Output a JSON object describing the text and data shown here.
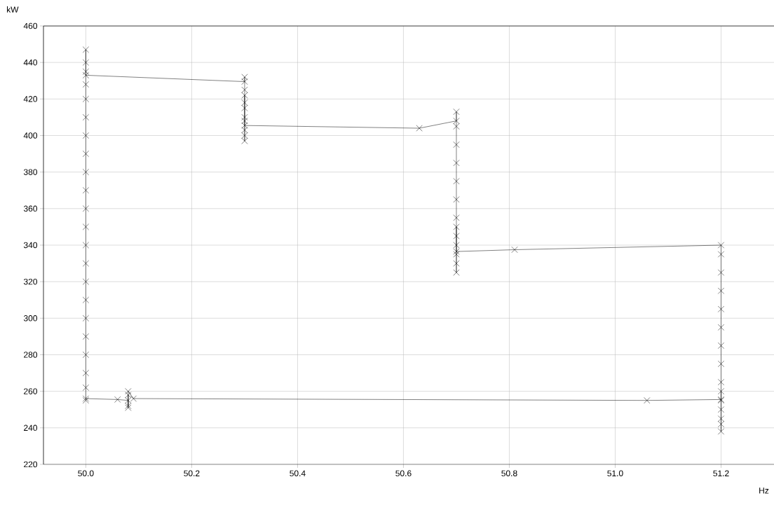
{
  "chart_data": {
    "type": "line",
    "xlabel": "Hz",
    "ylabel": "kW",
    "color": "#000000",
    "marker": "cross",
    "line_style": "solid",
    "grid": true,
    "x": [
      50.0,
      50.0,
      50.0,
      50.0,
      50.0,
      50.0,
      50.0,
      50.0,
      50.0,
      50.0,
      50.0,
      50.0,
      50.0,
      50.0,
      50.0,
      50.0,
      50.0,
      50.0,
      50.0,
      50.0,
      50.0,
      50.0,
      50.0,
      50.3,
      50.3,
      50.3,
      50.3,
      50.3,
      50.3,
      50.3,
      50.3,
      50.3,
      50.3,
      50.3,
      50.3,
      50.63,
      50.7,
      50.7,
      50.7,
      50.7,
      50.7,
      50.7,
      50.7,
      50.7,
      50.7,
      50.7,
      50.7,
      50.7,
      50.7,
      50.7,
      50.7,
      50.81,
      51.2,
      51.2,
      51.2,
      51.2,
      51.2,
      51.2,
      51.2,
      51.2,
      51.2,
      51.2,
      51.2,
      51.2,
      51.2,
      51.2,
      51.2,
      51.2,
      51.06,
      50.09,
      50.08,
      50.08,
      50.08,
      50.08,
      50.08,
      50.06,
      50.0
    ],
    "values": [
      255,
      262,
      270,
      280,
      290,
      300,
      310,
      320,
      330,
      340,
      350,
      360,
      370,
      380,
      390,
      400,
      410,
      420,
      428,
      435,
      440,
      447,
      433,
      429.5,
      432,
      425,
      418,
      410,
      403,
      397,
      400,
      408,
      415,
      422,
      405.5,
      404,
      408,
      413,
      405,
      395,
      385,
      375,
      365,
      355,
      345,
      335,
      325,
      330,
      340,
      350,
      336.5,
      337.5,
      340,
      335,
      325,
      315,
      305,
      295,
      285,
      275,
      265,
      255,
      245,
      238,
      242,
      250,
      260,
      255.5,
      255,
      256,
      260,
      252,
      258,
      251,
      255,
      255.5,
      256
    ],
    "xlim": [
      49.92,
      51.3
    ],
    "xticks": [
      {
        "value": 50.0,
        "label": "50.0"
      },
      {
        "value": 50.2,
        "label": "50.2"
      },
      {
        "value": 50.4,
        "label": "50.4"
      },
      {
        "value": 50.6,
        "label": "50.6"
      },
      {
        "value": 50.8,
        "label": "50.8"
      },
      {
        "value": 51.0,
        "label": "51.0"
      },
      {
        "value": 51.2,
        "label": "51.2"
      }
    ],
    "ylim": [
      220,
      460
    ],
    "yticks": [
      220,
      240,
      260,
      280,
      300,
      320,
      340,
      360,
      380,
      400,
      420,
      440,
      460
    ]
  }
}
